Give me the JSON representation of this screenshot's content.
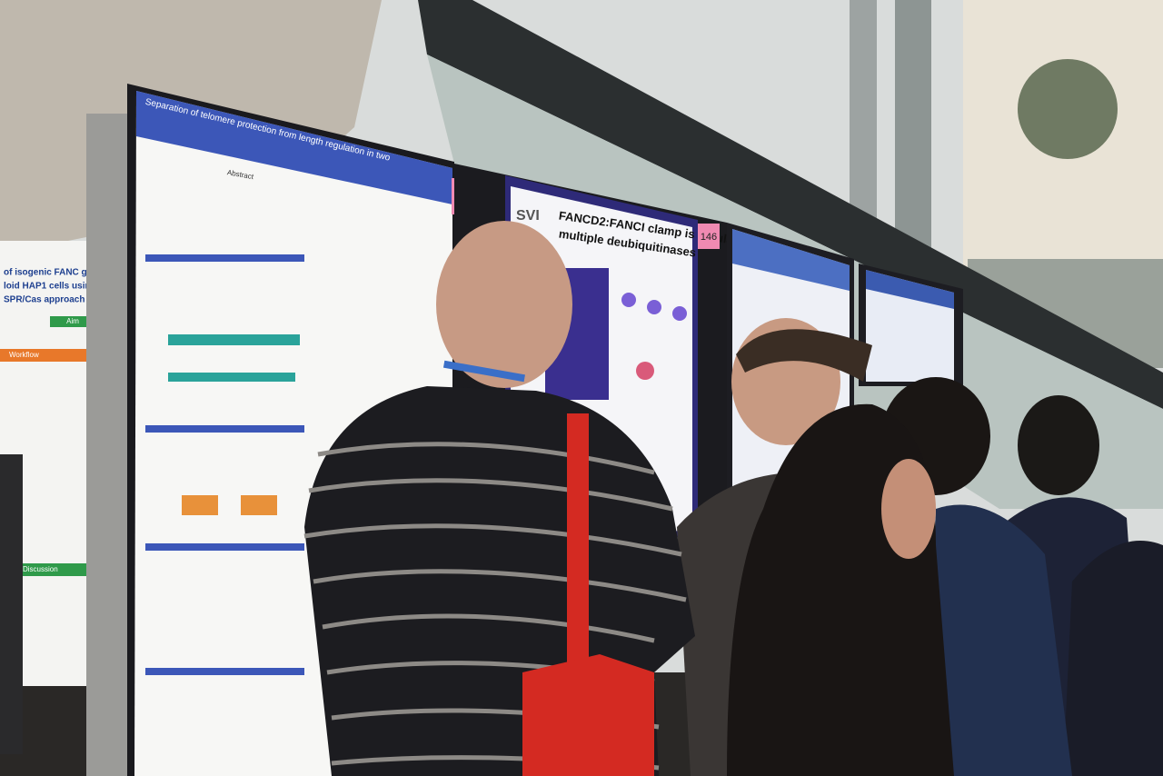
{
  "left_poster": {
    "title_lines": [
      "of isogenic FANC genes KO cell",
      "loid HAP1 cells using Dual-guide",
      "SPR/Cas approach"
    ],
    "sections": [
      "Aim",
      "Workflow",
      "Discussion"
    ]
  },
  "posters": [
    {
      "label": "145",
      "title": "Separation of telomere protection from length regulation in two",
      "section": "Abstract"
    },
    {
      "label": "146",
      "brand": "SVI",
      "title_lines": [
        "FANCD2:FANCI clamp is regulated by",
        "multiple deubiquitinases"
      ]
    }
  ]
}
